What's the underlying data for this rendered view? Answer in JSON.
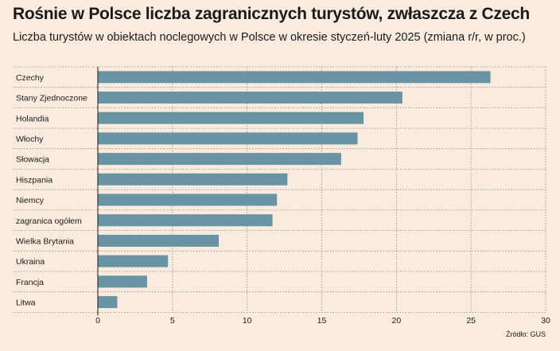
{
  "title": "Rośnie w Polsce liczba zagranicznych turystów, zwłaszcza z Czech",
  "subtitle": "Liczba turystów w obiektach noclegowych w Polsce w okresie styczeń-luty 2025 (zmiana r/r, w proc.)",
  "source": "Źródło: GUS",
  "colors": {
    "bar": "#6894a3",
    "background": "#f9ecdf",
    "grid": "#888888"
  },
  "chart_data": {
    "type": "bar",
    "orientation": "horizontal",
    "categories": [
      "Czechy",
      "Stany Zjednoczone",
      "Holandia",
      "Włochy",
      "Słowacja",
      "Hiszpania",
      "Niemcy",
      "zagranica ogółem",
      "Wielka Brytania",
      "Ukraina",
      "Francja",
      "Litwa"
    ],
    "values": [
      26.3,
      20.4,
      17.8,
      17.4,
      16.3,
      12.7,
      12.0,
      11.7,
      8.1,
      4.7,
      3.3,
      1.3
    ],
    "xlim": [
      0,
      30
    ],
    "xticks": [
      0,
      5,
      10,
      15,
      20,
      25,
      30
    ],
    "grid": true,
    "legend": "none"
  }
}
